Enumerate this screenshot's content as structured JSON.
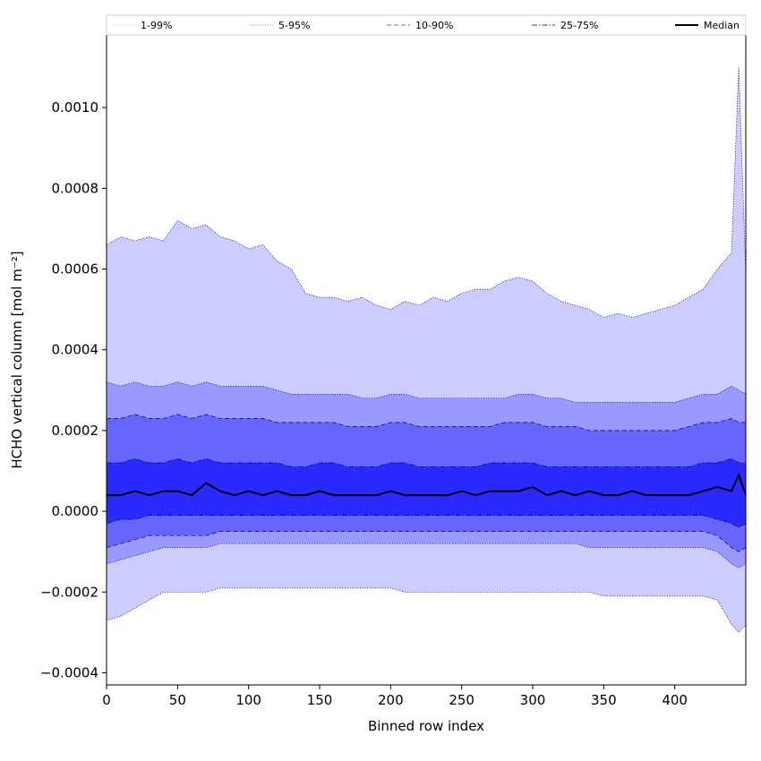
{
  "chart_data": {
    "type": "area",
    "xlabel": "Binned row index",
    "ylabel": "HCHO vertical column [mol m⁻²]",
    "xlim": [
      0,
      450
    ],
    "ylim": [
      -0.00043,
      0.00118
    ],
    "xticks": [
      0,
      50,
      100,
      150,
      200,
      250,
      300,
      350,
      400
    ],
    "xtick_labels": [
      "0",
      "50",
      "100",
      "150",
      "200",
      "250",
      "300",
      "350",
      "400"
    ],
    "yticks": [
      -0.0004,
      -0.0002,
      0.0,
      0.0002,
      0.0004,
      0.0006,
      0.0008,
      0.001
    ],
    "ytick_labels": [
      "−0.0004",
      "−0.0002",
      "0.0000",
      "0.0002",
      "0.0004",
      "0.0006",
      "0.0008",
      "0.0010"
    ],
    "legend_placement": "top",
    "grid": false,
    "x": [
      0,
      10,
      20,
      30,
      40,
      50,
      60,
      70,
      80,
      90,
      100,
      110,
      120,
      130,
      140,
      150,
      160,
      170,
      180,
      190,
      200,
      210,
      220,
      230,
      240,
      250,
      260,
      270,
      280,
      290,
      300,
      310,
      320,
      330,
      340,
      350,
      360,
      370,
      380,
      390,
      400,
      410,
      420,
      430,
      440,
      445,
      450
    ],
    "series": [
      {
        "name": "1-99%",
        "style": "dotted",
        "color": "#c8c8ff",
        "lower": [
          -0.00027,
          -0.00026,
          -0.00024,
          -0.00022,
          -0.0002,
          -0.0002,
          -0.0002,
          -0.0002,
          -0.00019,
          -0.00019,
          -0.00019,
          -0.00019,
          -0.00019,
          -0.00019,
          -0.00019,
          -0.00019,
          -0.00019,
          -0.00019,
          -0.00019,
          -0.00019,
          -0.00019,
          -0.0002,
          -0.0002,
          -0.0002,
          -0.0002,
          -0.0002,
          -0.0002,
          -0.0002,
          -0.0002,
          -0.0002,
          -0.0002,
          -0.0002,
          -0.0002,
          -0.0002,
          -0.0002,
          -0.00021,
          -0.00021,
          -0.00021,
          -0.00021,
          -0.00021,
          -0.00021,
          -0.00021,
          -0.00021,
          -0.00022,
          -0.00028,
          -0.0003,
          -0.00028
        ],
        "upper": [
          0.00066,
          0.00068,
          0.00067,
          0.00068,
          0.00067,
          0.00072,
          0.0007,
          0.00071,
          0.00068,
          0.00067,
          0.00065,
          0.00066,
          0.00062,
          0.0006,
          0.00054,
          0.00053,
          0.00053,
          0.00052,
          0.00053,
          0.00051,
          0.0005,
          0.00052,
          0.00051,
          0.00053,
          0.00052,
          0.00054,
          0.00055,
          0.00055,
          0.00057,
          0.00058,
          0.00057,
          0.00054,
          0.00052,
          0.00051,
          0.0005,
          0.00048,
          0.00049,
          0.00048,
          0.00049,
          0.0005,
          0.00051,
          0.00053,
          0.00055,
          0.0006,
          0.00064,
          0.0011,
          0.00059
        ]
      },
      {
        "name": "5-95%",
        "style": "dotted",
        "color": "#9898ff",
        "lower": [
          -0.00013,
          -0.00012,
          -0.00011,
          -0.0001,
          -9e-05,
          -9e-05,
          -9e-05,
          -9e-05,
          -8e-05,
          -8e-05,
          -8e-05,
          -8e-05,
          -8e-05,
          -8e-05,
          -8e-05,
          -8e-05,
          -8e-05,
          -8e-05,
          -8e-05,
          -8e-05,
          -8e-05,
          -8e-05,
          -8e-05,
          -8e-05,
          -8e-05,
          -8e-05,
          -8e-05,
          -8e-05,
          -8e-05,
          -8e-05,
          -8e-05,
          -8e-05,
          -8e-05,
          -8e-05,
          -9e-05,
          -9e-05,
          -9e-05,
          -9e-05,
          -9e-05,
          -9e-05,
          -9e-05,
          -9e-05,
          -9e-05,
          -0.0001,
          -0.00013,
          -0.00014,
          -0.00013
        ],
        "upper": [
          0.00032,
          0.00031,
          0.00032,
          0.00031,
          0.00031,
          0.00032,
          0.00031,
          0.00032,
          0.00031,
          0.00031,
          0.00031,
          0.00031,
          0.0003,
          0.00029,
          0.00029,
          0.00029,
          0.00029,
          0.00029,
          0.00028,
          0.00028,
          0.00029,
          0.00029,
          0.00028,
          0.00028,
          0.00028,
          0.00028,
          0.00028,
          0.00028,
          0.00028,
          0.00029,
          0.00029,
          0.00028,
          0.00028,
          0.00027,
          0.00027,
          0.00027,
          0.00027,
          0.00027,
          0.00027,
          0.00027,
          0.00027,
          0.00028,
          0.00029,
          0.00029,
          0.00031,
          0.0003,
          0.00029
        ]
      },
      {
        "name": "10-90%",
        "style": "dashed",
        "color": "#6464ff",
        "lower": [
          -9e-05,
          -8e-05,
          -7e-05,
          -6e-05,
          -6e-05,
          -6e-05,
          -6e-05,
          -6e-05,
          -5e-05,
          -5e-05,
          -5e-05,
          -5e-05,
          -5e-05,
          -5e-05,
          -5e-05,
          -5e-05,
          -5e-05,
          -5e-05,
          -5e-05,
          -5e-05,
          -5e-05,
          -5e-05,
          -5e-05,
          -5e-05,
          -5e-05,
          -5e-05,
          -5e-05,
          -5e-05,
          -5e-05,
          -5e-05,
          -5e-05,
          -5e-05,
          -5e-05,
          -5e-05,
          -5e-05,
          -5e-05,
          -5e-05,
          -5e-05,
          -5e-05,
          -5e-05,
          -5e-05,
          -5e-05,
          -5e-05,
          -6e-05,
          -9e-05,
          -0.0001,
          -9e-05
        ],
        "upper": [
          0.00023,
          0.00023,
          0.00024,
          0.00023,
          0.00023,
          0.00024,
          0.00023,
          0.00024,
          0.00023,
          0.00023,
          0.00023,
          0.00023,
          0.00022,
          0.00022,
          0.00022,
          0.00022,
          0.00022,
          0.00021,
          0.00021,
          0.00021,
          0.00022,
          0.00022,
          0.00021,
          0.00021,
          0.00021,
          0.00021,
          0.00021,
          0.00021,
          0.00022,
          0.00022,
          0.00022,
          0.00021,
          0.00021,
          0.00021,
          0.0002,
          0.0002,
          0.0002,
          0.0002,
          0.0002,
          0.0002,
          0.0002,
          0.00021,
          0.00022,
          0.00022,
          0.00023,
          0.00022,
          0.00022
        ]
      },
      {
        "name": "25-75%",
        "style": "dashdot",
        "color": "#2828ff",
        "lower": [
          -3e-05,
          -2e-05,
          -2e-05,
          -1e-05,
          -1e-05,
          -1e-05,
          -1e-05,
          -1e-05,
          -1e-05,
          -1e-05,
          -1e-05,
          -1e-05,
          -1e-05,
          -1e-05,
          -1e-05,
          -1e-05,
          -1e-05,
          -1e-05,
          -1e-05,
          -1e-05,
          -1e-05,
          -1e-05,
          -1e-05,
          -1e-05,
          -1e-05,
          -1e-05,
          -1e-05,
          -1e-05,
          -1e-05,
          -1e-05,
          -1e-05,
          -1e-05,
          -1e-05,
          -1e-05,
          -1e-05,
          -1e-05,
          -1e-05,
          -1e-05,
          -1e-05,
          -1e-05,
          -1e-05,
          -1e-05,
          -1e-05,
          -2e-05,
          -3e-05,
          -4e-05,
          -3e-05
        ],
        "upper": [
          0.00012,
          0.00012,
          0.00013,
          0.00012,
          0.00012,
          0.00013,
          0.00012,
          0.00013,
          0.00012,
          0.00012,
          0.00012,
          0.00012,
          0.00012,
          0.00011,
          0.00011,
          0.00012,
          0.00012,
          0.00011,
          0.00011,
          0.00011,
          0.00012,
          0.00012,
          0.00011,
          0.00011,
          0.00011,
          0.00011,
          0.00011,
          0.00012,
          0.00012,
          0.00012,
          0.00012,
          0.00011,
          0.00011,
          0.00011,
          0.00011,
          0.00011,
          0.00011,
          0.00011,
          0.00011,
          0.00011,
          0.00011,
          0.00011,
          0.00012,
          0.00012,
          0.00013,
          0.00012,
          0.00012
        ]
      },
      {
        "name": "Median",
        "style": "solid",
        "color": "#000000",
        "values": [
          4e-05,
          4e-05,
          5e-05,
          4e-05,
          5e-05,
          5e-05,
          4e-05,
          7e-05,
          5e-05,
          4e-05,
          5e-05,
          4e-05,
          5e-05,
          4e-05,
          4e-05,
          5e-05,
          4e-05,
          4e-05,
          4e-05,
          4e-05,
          5e-05,
          4e-05,
          4e-05,
          4e-05,
          4e-05,
          5e-05,
          4e-05,
          5e-05,
          5e-05,
          5e-05,
          6e-05,
          4e-05,
          5e-05,
          4e-05,
          5e-05,
          4e-05,
          4e-05,
          5e-05,
          4e-05,
          4e-05,
          4e-05,
          4e-05,
          5e-05,
          6e-05,
          5e-05,
          9e-05,
          4e-05
        ]
      }
    ],
    "band_fills": [
      "#ccccff",
      "#9999ff",
      "#6666ff",
      "#2a2aff"
    ]
  }
}
